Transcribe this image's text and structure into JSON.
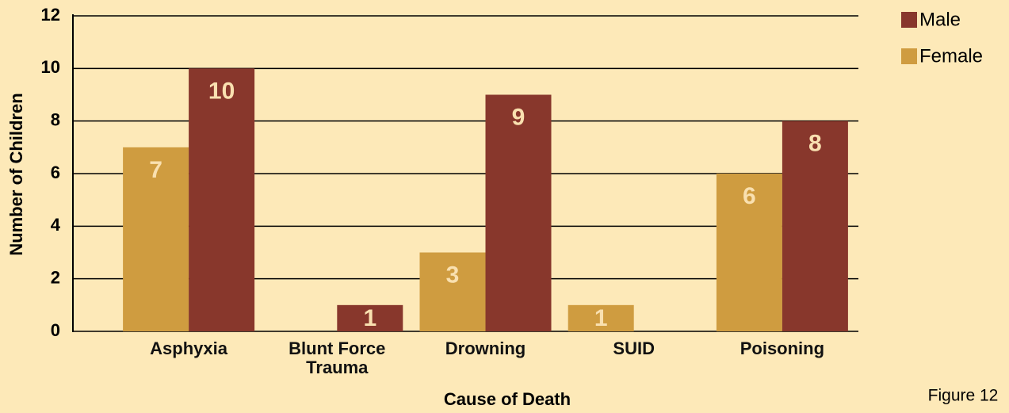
{
  "chart_data": {
    "type": "bar",
    "categories": [
      "Asphyxia",
      "Blunt Force Trauma",
      "Drowning",
      "SUID",
      "Poisoning"
    ],
    "series": [
      {
        "name": "Female",
        "color": "#cf9c40",
        "values": [
          7,
          null,
          3,
          1,
          6
        ]
      },
      {
        "name": "Male",
        "color": "#88372c",
        "values": [
          10,
          1,
          9,
          null,
          8
        ]
      }
    ],
    "xlabel": "Cause of Death",
    "ylabel": "Number of Children",
    "ylim": [
      0,
      12
    ],
    "yticks": [
      0,
      2,
      4,
      6,
      8,
      10,
      12
    ],
    "grid": true,
    "legend": "upper right",
    "caption": "Figure 12"
  }
}
